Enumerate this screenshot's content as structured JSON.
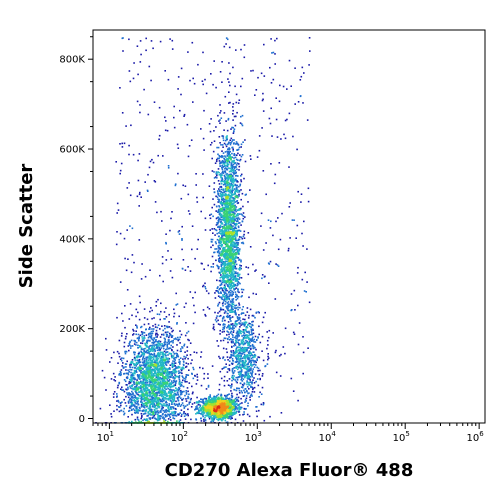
{
  "chart_data": {
    "type": "scatter",
    "plot_style": "flow cytometry density dot plot",
    "xlabel": "CD270 Alexa Fluor® 488",
    "ylabel": "Side Scatter",
    "x_scale": "log",
    "xlim": [
      6,
      1200000
    ],
    "ylim": [
      -10000,
      865000
    ],
    "x_ticks": [
      {
        "value": 10,
        "base": "10",
        "exp": "1"
      },
      {
        "value": 100,
        "base": "10",
        "exp": "2"
      },
      {
        "value": 1000,
        "base": "10",
        "exp": "3"
      },
      {
        "value": 10000,
        "base": "10",
        "exp": "4"
      },
      {
        "value": 100000,
        "base": "10",
        "exp": "5"
      },
      {
        "value": 1000000,
        "base": "10",
        "exp": "6"
      }
    ],
    "y_ticks": [
      {
        "value": 0,
        "label": "0"
      },
      {
        "value": 200000,
        "label": "200K"
      },
      {
        "value": 400000,
        "label": "400K"
      },
      {
        "value": 600000,
        "label": "600K"
      },
      {
        "value": 800000,
        "label": "800K"
      }
    ],
    "density_colors": [
      "#1a1aa8",
      "#1e6fd0",
      "#22b7c7",
      "#39d277",
      "#a8e02c",
      "#f2d21e",
      "#f08a1a",
      "#e02a14"
    ],
    "populations": [
      {
        "center_x": 300,
        "center_y": 25000,
        "spread_log_x": 0.12,
        "spread_y": 12000,
        "count": 1400
      },
      {
        "center_x": 40,
        "center_y": 80000,
        "spread_log_x": 0.22,
        "spread_y": 60000,
        "count": 2600
      },
      {
        "center_x": 400,
        "center_y": 420000,
        "spread_log_x": 0.08,
        "spread_y": 110000,
        "count": 2200
      },
      {
        "center_x": 650,
        "center_y": 140000,
        "spread_log_x": 0.1,
        "spread_y": 50000,
        "count": 700
      }
    ]
  }
}
